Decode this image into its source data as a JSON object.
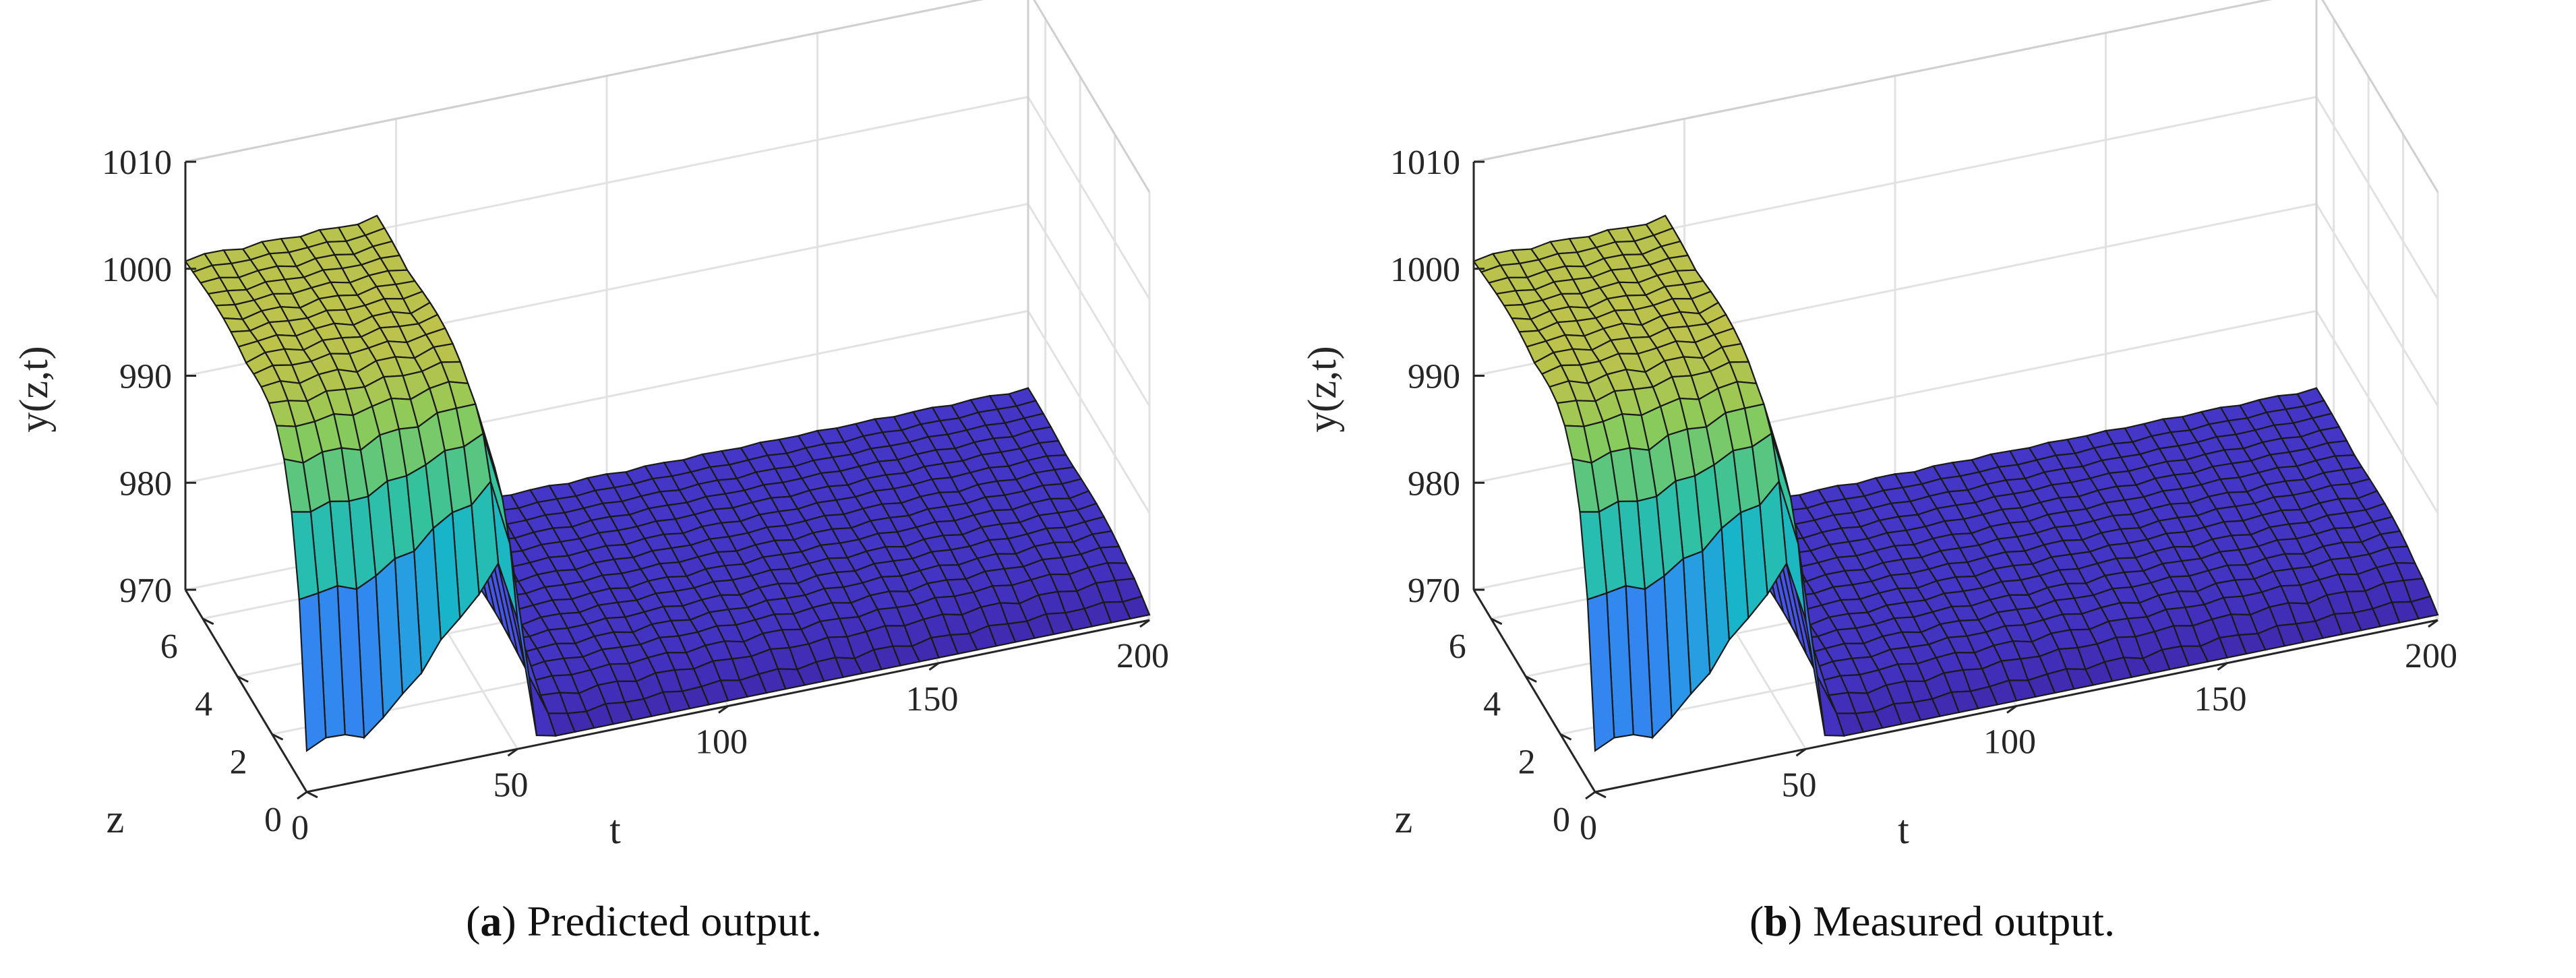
{
  "figure": {
    "panels": [
      {
        "label_pre": "(",
        "label": "a",
        "label_post": ")",
        "caption": " Predicted output."
      },
      {
        "label_pre": "(",
        "label": "b",
        "label_post": ")",
        "caption": " Measured output."
      }
    ]
  },
  "chart_data": [
    {
      "type": "surface",
      "title": "Predicted output.",
      "xlabel": "t",
      "ylabel": "z",
      "zlabel": "y(z,t)",
      "xlim": [
        0,
        200
      ],
      "ylim": [
        0,
        7
      ],
      "zlim": [
        970,
        1010
      ],
      "xticks": [
        "0",
        "50",
        "100",
        "150",
        "200"
      ],
      "yticks": [
        "0",
        "2",
        "4",
        "6"
      ],
      "zticks": [
        "970",
        "980",
        "990",
        "1000",
        "1010"
      ],
      "colormap": [
        "#3e26a8",
        "#4a47e8",
        "#2f8ff0",
        "#17b6c9",
        "#35c29c",
        "#8bcb5a",
        "#f6b73a",
        "#f9e22a"
      ],
      "description_values": {
        "high_plateau": 1001,
        "low_plateau": 972,
        "step_t": 50
      }
    },
    {
      "type": "surface",
      "title": "Measured output.",
      "xlabel": "t",
      "ylabel": "z",
      "zlabel": "y(z,t)",
      "xlim": [
        0,
        200
      ],
      "ylim": [
        0,
        7
      ],
      "zlim": [
        970,
        1010
      ],
      "xticks": [
        "0",
        "50",
        "100",
        "150",
        "200"
      ],
      "yticks": [
        "0",
        "2",
        "4",
        "6"
      ],
      "zticks": [
        "970",
        "980",
        "990",
        "1000",
        "1010"
      ],
      "colormap": [
        "#3e26a8",
        "#4a47e8",
        "#2f8ff0",
        "#17b6c9",
        "#35c29c",
        "#8bcb5a",
        "#f6b73a",
        "#f9e22a"
      ],
      "description_values": {
        "high_plateau": 1001,
        "low_plateau": 972,
        "step_t": 50
      }
    }
  ]
}
